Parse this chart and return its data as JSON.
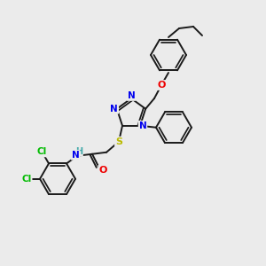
{
  "background_color": "#ebebeb",
  "bond_color": "#1a1a1a",
  "atom_colors": {
    "N": "#0000ee",
    "O": "#ee0000",
    "S": "#bbbb00",
    "Cl": "#00bb00",
    "H": "#44aaaa",
    "C": "#1a1a1a"
  },
  "figsize": [
    3.0,
    3.0
  ],
  "dpi": 100,
  "lw": 1.4,
  "r_hex": 20,
  "r_triazole": 17
}
